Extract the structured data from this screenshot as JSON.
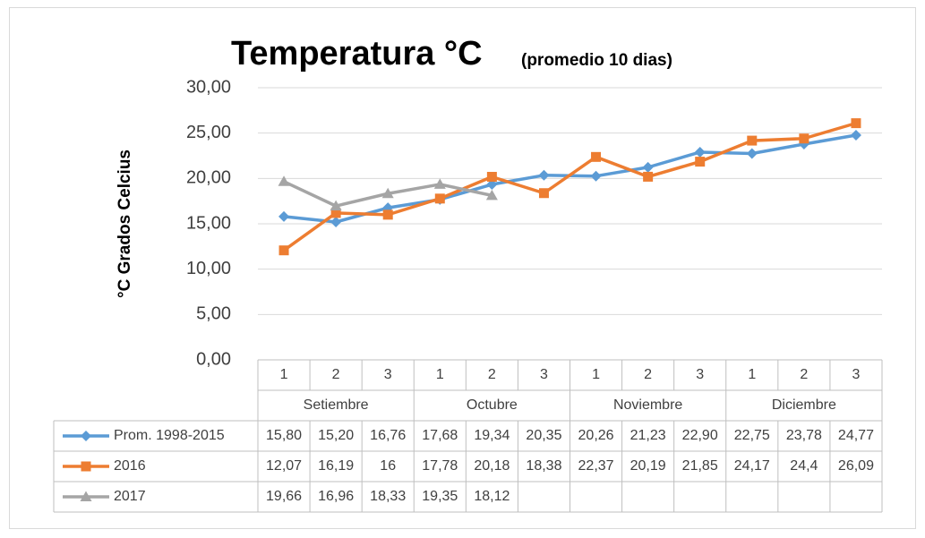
{
  "chart_data": {
    "type": "line",
    "title": "Temperatura °C",
    "subtitle": "(promedio 10 dias)",
    "y_label": "°C Grados Celcius",
    "categories": [
      "1",
      "2",
      "3",
      "1",
      "2",
      "3",
      "1",
      "2",
      "3",
      "1",
      "2",
      "3"
    ],
    "groups": [
      "Setiembre",
      "Octubre",
      "Noviembre",
      "Diciembre"
    ],
    "ylim": [
      0,
      30
    ],
    "yticks": [
      {
        "value": 0,
        "label": "0,00"
      },
      {
        "value": 5,
        "label": "5,00"
      },
      {
        "value": 10,
        "label": "10,00"
      },
      {
        "value": 15,
        "label": "15,00"
      },
      {
        "value": 20,
        "label": "20,00"
      },
      {
        "value": 25,
        "label": "25,00"
      },
      {
        "value": 30,
        "label": "30,00"
      }
    ],
    "grid": true,
    "series": [
      {
        "name": "Prom. 1998-2015",
        "color": "#5b9bd5",
        "marker": "diamond",
        "values": [
          15.8,
          15.2,
          16.76,
          17.68,
          19.34,
          20.35,
          20.26,
          21.23,
          22.9,
          22.75,
          23.78,
          24.77
        ],
        "value_labels": [
          "15,80",
          "15,20",
          "16,76",
          "17,68",
          "19,34",
          "20,35",
          "20,26",
          "21,23",
          "22,90",
          "22,75",
          "23,78",
          "24,77"
        ]
      },
      {
        "name": "2016",
        "color": "#ed7d31",
        "marker": "square",
        "values": [
          12.07,
          16.19,
          16,
          17.78,
          20.18,
          18.38,
          22.37,
          20.19,
          21.85,
          24.17,
          24.4,
          26.09
        ],
        "value_labels": [
          "12,07",
          "16,19",
          "16",
          "17,78",
          "20,18",
          "18,38",
          "22,37",
          "20,19",
          "21,85",
          "24,17",
          "24,4",
          "26,09"
        ]
      },
      {
        "name": "2017",
        "color": "#a5a5a5",
        "marker": "triangle",
        "values": [
          19.66,
          16.96,
          18.33,
          19.35,
          18.12,
          null,
          null,
          null,
          null,
          null,
          null,
          null
        ],
        "value_labels": [
          "19,66",
          "16,96",
          "18,33",
          "19,35",
          "18,12",
          null,
          null,
          null,
          null,
          null,
          null,
          null
        ]
      }
    ]
  }
}
